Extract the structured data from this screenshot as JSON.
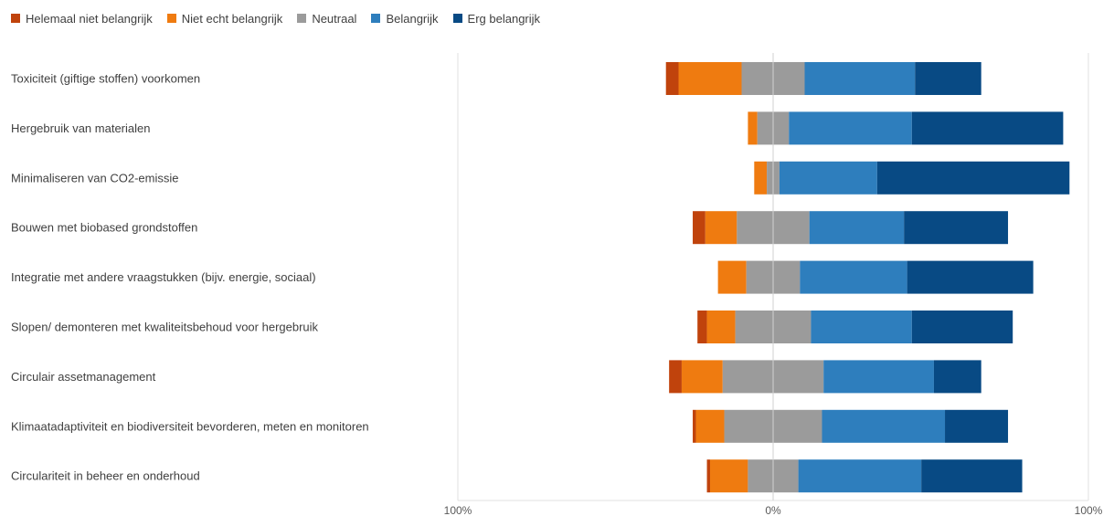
{
  "chart_data": {
    "type": "bar",
    "orientation": "horizontal",
    "stacked": "diverging",
    "categories": [
      "Toxiciteit (giftige stoffen) voorkomen",
      "Hergebruik van materialen",
      "Minimaliseren van CO2-emissie",
      "Bouwen met biobased grondstoffen",
      "Integratie met andere vraagstukken (bijv. energie, sociaal)",
      "Slopen/ demonteren met kwaliteitsbehoud voor hergebruik",
      "Circulair assetmanagement",
      "Klimaatadaptiviteit en biodiversiteit bevorderen, meten en monitoren",
      "Circulariteit in beheer en onderhoud"
    ],
    "series": [
      {
        "name": "Helemaal niet belangrijk",
        "color": "#c0430c",
        "values": [
          4,
          0,
          0,
          4,
          0,
          3,
          4,
          1,
          1
        ]
      },
      {
        "name": "Niet echt belangrijk",
        "color": "#ef7b10",
        "values": [
          20,
          3,
          4,
          10,
          9,
          9,
          13,
          9,
          12
        ]
      },
      {
        "name": "Neutraal",
        "color": "#9b9b9b",
        "values": [
          20,
          10,
          4,
          23,
          17,
          24,
          32,
          31,
          16
        ]
      },
      {
        "name": "Belangrijk",
        "color": "#2e7ebd",
        "values": [
          35,
          39,
          31,
          30,
          34,
          32,
          35,
          39,
          39
        ]
      },
      {
        "name": "Erg belangrijk",
        "color": "#084a84",
        "values": [
          21,
          48,
          61,
          33,
          40,
          32,
          15,
          20,
          32
        ]
      }
    ],
    "xlim": [
      -100,
      100
    ],
    "x_ticks": [
      "100%",
      "0%",
      "100%"
    ],
    "grid": true,
    "legend_position": "top-left"
  }
}
